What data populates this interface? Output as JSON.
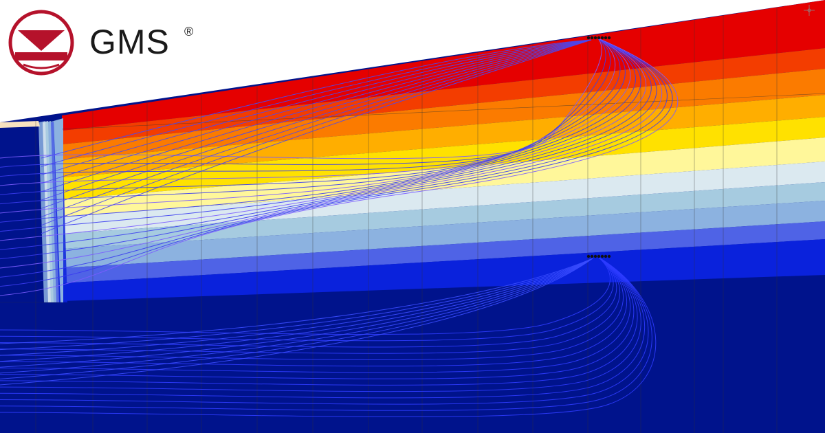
{
  "brand": {
    "name": "GMS",
    "registered": "®",
    "color": "#b5122b"
  },
  "legend_colors": [
    "#e50000",
    "#f33d00",
    "#fb7b00",
    "#ffae00",
    "#ffe100",
    "#fff79a",
    "#dbe9f0",
    "#a6cbe0",
    "#8cb2e0",
    "#4f63e6",
    "#0a22dc",
    "#00138c"
  ],
  "icons": {
    "logo": "gms-logo-icon",
    "gizmo": "axis-gizmo-icon"
  }
}
